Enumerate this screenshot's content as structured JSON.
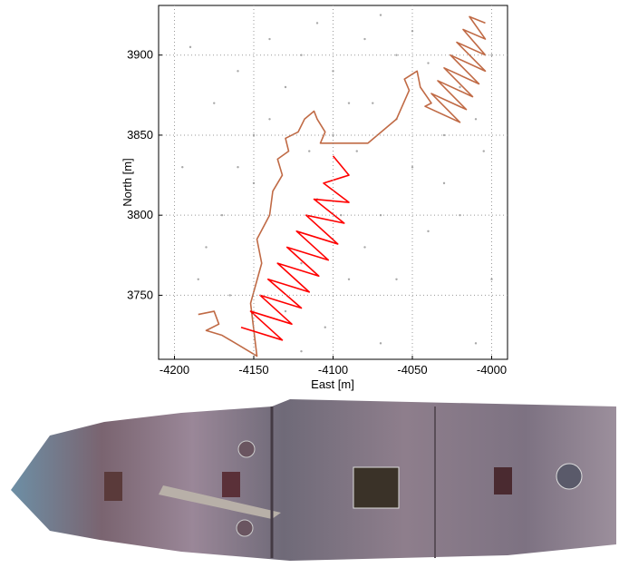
{
  "chart_data": {
    "type": "scatter",
    "xlabel": "East [m]",
    "ylabel": "North [m]",
    "xlim": [
      -4210,
      -3990
    ],
    "ylim": [
      3710,
      3931
    ],
    "xticks": [
      -4200,
      -4150,
      -4100,
      -4050,
      -4000
    ],
    "yticks": [
      3750,
      3800,
      3850,
      3900
    ],
    "grid": true,
    "series": [
      {
        "type": "scatter",
        "color": "#a8a8a8",
        "x": [
          -4190,
          -4175,
          -4160,
          -4150,
          -4140,
          -4130,
          -4120,
          -4110,
          -4100,
          -4090,
          -4080,
          -4070,
          -4060,
          -4050,
          -4040,
          -4030,
          -4020,
          -4010,
          -4000,
          -4005,
          -4030,
          -4050,
          -4060,
          -4070,
          -4080,
          -4090,
          -4095,
          -4110,
          -4120,
          -4130,
          -4150,
          -4170,
          -4180,
          -4195,
          -4185,
          -4165,
          -4105,
          -4060,
          -4040,
          -4020,
          -4000,
          -4010,
          -4070,
          -4120,
          -4140,
          -4160,
          -4085,
          -4075,
          -4100,
          -4115
        ],
        "values": [
          3905,
          3870,
          3890,
          3850,
          3910,
          3880,
          3900,
          3920,
          3890,
          3870,
          3910,
          3925,
          3900,
          3915,
          3895,
          3850,
          3880,
          3860,
          3900,
          3840,
          3820,
          3830,
          3860,
          3800,
          3780,
          3760,
          3800,
          3810,
          3770,
          3740,
          3820,
          3800,
          3780,
          3830,
          3760,
          3750,
          3730,
          3760,
          3790,
          3800,
          3760,
          3720,
          3720,
          3715,
          3860,
          3830,
          3840,
          3870,
          3850,
          3840
        ]
      },
      {
        "type": "line",
        "color": "#c06a45",
        "x": [
          -4185,
          -4175,
          -4172,
          -4180,
          -4170,
          -4158,
          -4148,
          -4152,
          -4145,
          -4148,
          -4140,
          -4138,
          -4132,
          -4135,
          -4128,
          -4130,
          -4122,
          -4118,
          -4112,
          -4110,
          -4105,
          -4108,
          -4078,
          -4060,
          -4052,
          -4055,
          -4047,
          -4045,
          -4038,
          -4042,
          -4020,
          -4038,
          -4016,
          -4034,
          -4012,
          -4030,
          -4008,
          -4026,
          -4004,
          -4022,
          -4004,
          -4018,
          -4004,
          -4014,
          -4004
        ],
        "values": [
          3738,
          3740,
          3732,
          3728,
          3725,
          3718,
          3712,
          3745,
          3770,
          3785,
          3800,
          3815,
          3825,
          3835,
          3840,
          3848,
          3852,
          3860,
          3865,
          3860,
          3852,
          3845,
          3845,
          3860,
          3878,
          3885,
          3890,
          3880,
          3870,
          3868,
          3858,
          3876,
          3866,
          3884,
          3874,
          3892,
          3882,
          3900,
          3890,
          3908,
          3900,
          3916,
          3910,
          3924,
          3920
        ]
      },
      {
        "type": "line",
        "color": "#ff0000",
        "x": [
          -4158,
          -4132,
          -4152,
          -4126,
          -4146,
          -4120,
          -4141,
          -4115,
          -4135,
          -4109,
          -4129,
          -4103,
          -4123,
          -4097,
          -4117,
          -4093,
          -4112,
          -4090,
          -4106,
          -4090,
          -4100
        ],
        "values": [
          3730,
          3722,
          3740,
          3732,
          3750,
          3742,
          3760,
          3752,
          3770,
          3762,
          3780,
          3772,
          3790,
          3782,
          3800,
          3795,
          3810,
          3808,
          3820,
          3825,
          3837
        ]
      }
    ]
  }
}
